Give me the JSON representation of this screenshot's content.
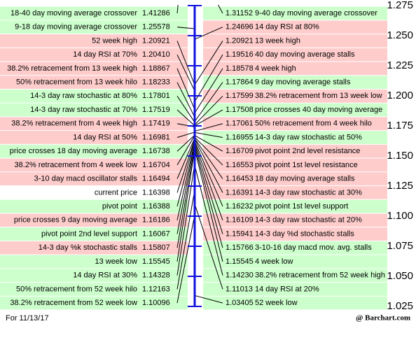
{
  "chart_data": {
    "type": "levels",
    "ylim": [
      1.025,
      1.275
    ],
    "yticks": [
      1.275,
      {
        "value": 1.25,
        "label": "1.250"
      },
      1.225,
      {
        "value": 1.2,
        "label": "1.200"
      },
      1.175,
      {
        "value": 1.15,
        "label": "1.150"
      },
      1.125,
      {
        "value": 1.1,
        "label": "1.100"
      },
      1.075,
      {
        "value": 1.05,
        "label": "1.050"
      },
      1.025
    ],
    "axis_color": "#1010e0",
    "line_color": "#000000",
    "left": {
      "labels": [
        "18-40 day moving average crossover",
        "9-18 day moving average crossover",
        "52 week high",
        "14 day RSI at 70%",
        "38.2% retracement from 13 week high",
        "50% retracement from 13 week hilo",
        "14-3 day raw stochastic at 80%",
        "14-3 day raw stochastic at 70%",
        "38.2% retracement from 4 week high",
        "14 day RSI at 50%",
        "price crosses 18 day moving average",
        "38.2% retracement from 4 week low",
        "3-10 day macd oscillator stalls",
        "current price",
        "pivot point",
        "price crosses 9 day moving average",
        "pivot point 2nd level support",
        "14-3 day %k stochastic stalls",
        "13 week low",
        "14 day RSI at 30%",
        "50% retracement from 52 week hilo",
        "38.2% retracement from 52 week low"
      ],
      "values": [
        1.41286,
        1.25578,
        1.20921,
        1.2041,
        1.18867,
        1.18233,
        1.17801,
        1.17519,
        1.17419,
        1.16981,
        1.16738,
        1.16704,
        1.16494,
        1.16398,
        1.16388,
        1.16186,
        1.16067,
        1.15807,
        1.15545,
        1.14328,
        1.12163,
        1.10096
      ],
      "value_labels": [
        "1.41286",
        "1.25578",
        "1.20921",
        "1.20410",
        "1.18867",
        "1.18233",
        "1.17801",
        "1.17519",
        "1.17419",
        "1.16981",
        "1.16738",
        "1.16704",
        "1.16494",
        "1.16398",
        "1.16388",
        "1.16186",
        "1.16067",
        "1.15807",
        "1.15545",
        "1.14328",
        "1.12163",
        "1.10096"
      ],
      "colors": [
        "#ccffcc",
        "#ccffcc",
        "#ffcccc",
        "#ffcccc",
        "#ffcccc",
        "#ffcccc",
        "#ccffcc",
        "#ccffcc",
        "#ffcccc",
        "#ffcccc",
        "#ccffcc",
        "#ffcccc",
        "#ffcccc",
        "#ffffff",
        "#ccffcc",
        "#ffcccc",
        "#ccffcc",
        "#ffcccc",
        "#ccffcc",
        "#ccffcc",
        "#ccffcc",
        "#ccffcc"
      ]
    },
    "right": {
      "labels": [
        "9-40 day moving average crossover",
        "14 day RSI at 80%",
        "13 week high",
        "40 day moving average stalls",
        "4 week high",
        "9 day moving average stalls",
        "38.2% retracement from 13 week low",
        "price crosses 40 day moving average",
        "50% retracement from 4 week hilo",
        "14-3 day raw stochastic at 50%",
        "pivot point 2nd level resistance",
        "pivot point 1st level resistance",
        "18 day moving average stalls",
        "14-3 day raw stochastic at 30%",
        "pivot point 1st level support",
        "14-3 day raw stochastic at 20%",
        "14-3 day %d stochastic stalls",
        "3-10-16 day macd mov. avg. stalls",
        "4 week low",
        "38.2% retracement from 52 week high",
        "14 day RSI at 20%",
        "52 week low"
      ],
      "values": [
        1.31152,
        1.24696,
        1.20921,
        1.19516,
        1.18578,
        1.17864,
        1.17599,
        1.17508,
        1.17061,
        1.16955,
        1.16709,
        1.16553,
        1.16453,
        1.16391,
        1.16232,
        1.16109,
        1.15941,
        1.15766,
        1.15545,
        1.1423,
        1.11013,
        1.03405
      ],
      "value_labels": [
        "1.31152",
        "1.24696",
        "1.20921",
        "1.19516",
        "1.18578",
        "1.17864",
        "1.17599",
        "1.17508",
        "1.17061",
        "1.16955",
        "1.16709",
        "1.16553",
        "1.16453",
        "1.16391",
        "1.16232",
        "1.16109",
        "1.15941",
        "1.15766",
        "1.15545",
        "1.14230",
        "1.11013",
        "1.03405"
      ],
      "colors": [
        "#ccffcc",
        "#ffcccc",
        "#ffcccc",
        "#ffcccc",
        "#ffcccc",
        "#ccffcc",
        "#ffcccc",
        "#ccffcc",
        "#ffcccc",
        "#ccffcc",
        "#ffcccc",
        "#ffcccc",
        "#ffcccc",
        "#ffcccc",
        "#ccffcc",
        "#ffcccc",
        "#ffcccc",
        "#ccffcc",
        "#ccffcc",
        "#ccffcc",
        "#ccffcc",
        "#ccffcc"
      ]
    },
    "note": "For 11/13/17",
    "source": "@ Barchart.com"
  }
}
